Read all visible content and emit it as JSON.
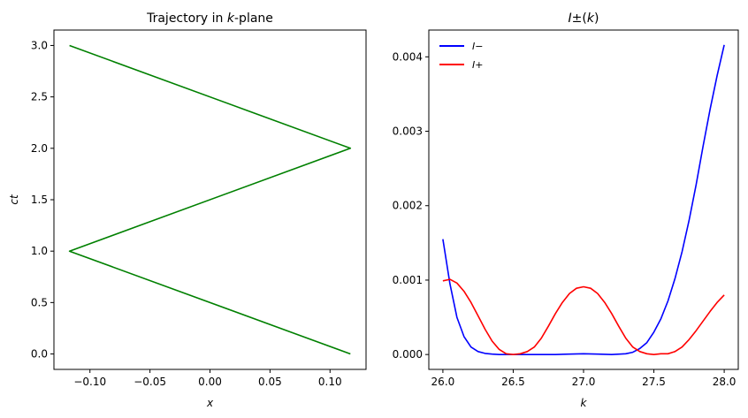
{
  "chart_data": [
    {
      "type": "line",
      "title": "Trajectory in k-plane",
      "xlabel": "x",
      "ylabel": "ct",
      "xlim": [
        -0.13,
        0.13
      ],
      "ylim": [
        -0.15,
        3.15
      ],
      "xticks": [
        "−0.10",
        "−0.05",
        "0.00",
        "0.05",
        "0.10"
      ],
      "xtick_values": [
        -0.1,
        -0.05,
        0.0,
        0.05,
        0.1
      ],
      "yticks": [
        "0.0",
        "0.5",
        "1.0",
        "1.5",
        "2.0",
        "2.5",
        "3.0"
      ],
      "ytick_values": [
        0.0,
        0.5,
        1.0,
        1.5,
        2.0,
        2.5,
        3.0
      ],
      "grid": false,
      "series": [
        {
          "color": "#008000",
          "x": [
            0.117,
            -0.117,
            0.117,
            -0.117
          ],
          "y": [
            0.0,
            1.0,
            2.0,
            3.0
          ]
        }
      ]
    },
    {
      "type": "line",
      "title": "I±(k)",
      "xlabel": "k",
      "ylabel": "",
      "xlim": [
        25.9,
        28.1
      ],
      "ylim": [
        -0.0002,
        0.00436
      ],
      "xticks": [
        "26.0",
        "26.5",
        "27.0",
        "27.5",
        "28.0"
      ],
      "xtick_values": [
        26.0,
        26.5,
        27.0,
        27.5,
        28.0
      ],
      "yticks": [
        "0.000",
        "0.001",
        "0.002",
        "0.003",
        "0.004"
      ],
      "ytick_values": [
        0.0,
        0.001,
        0.002,
        0.003,
        0.004
      ],
      "grid": false,
      "legend_position": "top-left",
      "series": [
        {
          "name": "I−",
          "color": "#0000ff",
          "x": [
            26.0,
            26.05,
            26.1,
            26.15,
            26.2,
            26.25,
            26.3,
            26.35,
            26.4,
            26.5,
            26.6,
            26.7,
            26.8,
            26.9,
            27.0,
            27.1,
            27.2,
            27.3,
            27.35,
            27.4,
            27.45,
            27.5,
            27.55,
            27.6,
            27.65,
            27.7,
            27.75,
            27.8,
            27.85,
            27.9,
            27.95,
            28.0
          ],
          "y": [
            0.00155,
            0.00095,
            0.0005,
            0.00024,
            0.0001,
            4e-05,
            1.5e-05,
            5e-06,
            0.0,
            0.0,
            0.0,
            0.0,
            0.0,
            5e-06,
            1e-05,
            5e-06,
            0.0,
            1e-05,
            3e-05,
            8e-05,
            0.00016,
            0.0003,
            0.00048,
            0.00072,
            0.00102,
            0.00138,
            0.0018,
            0.00228,
            0.0028,
            0.0033,
            0.00375,
            0.00416
          ]
        },
        {
          "name": "I+",
          "color": "#ff0000",
          "x": [
            26.0,
            26.05,
            26.1,
            26.15,
            26.2,
            26.25,
            26.3,
            26.35,
            26.4,
            26.45,
            26.5,
            26.55,
            26.6,
            26.65,
            26.7,
            26.75,
            26.8,
            26.85,
            26.9,
            26.95,
            27.0,
            27.05,
            27.1,
            27.15,
            27.2,
            27.25,
            27.3,
            27.35,
            27.4,
            27.45,
            27.5,
            27.55,
            27.6,
            27.65,
            27.7,
            27.75,
            27.8,
            27.85,
            27.9,
            27.95,
            28.0
          ],
          "y": [
            0.00099,
            0.00101,
            0.00096,
            0.00085,
            0.0007,
            0.00052,
            0.00034,
            0.00018,
            7e-05,
            1e-05,
            0.0,
            1e-05,
            4e-05,
            0.0001,
            0.00022,
            0.00038,
            0.00055,
            0.0007,
            0.00082,
            0.00089,
            0.00091,
            0.00089,
            0.00082,
            0.0007,
            0.00055,
            0.00038,
            0.00022,
            0.0001,
            4e-05,
            1e-05,
            0.0,
            1e-05,
            1e-05,
            4e-05,
            0.0001,
            0.0002,
            0.00032,
            0.00045,
            0.00058,
            0.0007,
            0.0008
          ]
        }
      ]
    }
  ]
}
